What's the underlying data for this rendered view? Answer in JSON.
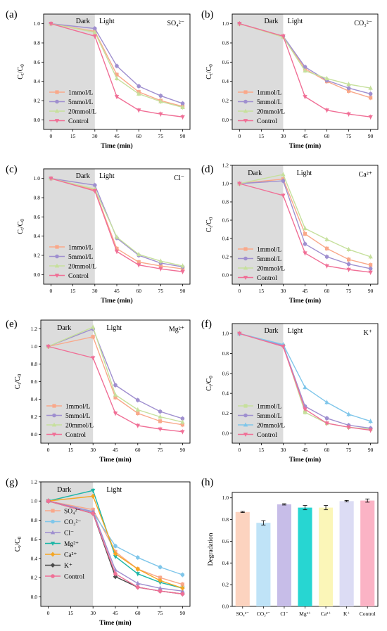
{
  "colors": {
    "c1": "#f9a88a",
    "c5": "#9f8fcf",
    "c20": "#c6e09c",
    "control": "#f06f96",
    "so4": "#f9a88a",
    "co3": "#7fc6ea",
    "cl": "#9f8fcf",
    "mg": "#1db6a7",
    "ca": "#f5a623",
    "k": "#4a4a4a",
    "dark_region": "#dcdcdc"
  },
  "chart_data": [
    {
      "panel": "(a)",
      "type": "line",
      "ion": "SO₄²⁻",
      "xlabel": "Time (min)",
      "ylabel": "Ct/C0",
      "x": [
        0,
        30,
        45,
        60,
        75,
        90
      ],
      "xticks": [
        0,
        15,
        30,
        45,
        60,
        75,
        90
      ],
      "ylim": [
        -0.1,
        1.1
      ],
      "yticks": [
        0.0,
        0.2,
        0.4,
        0.6,
        0.8,
        1.0
      ],
      "region_labels": [
        "Dark",
        "Light"
      ],
      "region_layout": "together",
      "series": [
        {
          "name": "1mmol/L",
          "color": "c1",
          "values": [
            1.0,
            0.92,
            0.47,
            0.29,
            0.2,
            0.14
          ]
        },
        {
          "name": "5mmol/L",
          "color": "c5",
          "values": [
            1.0,
            0.95,
            0.56,
            0.35,
            0.25,
            0.17
          ]
        },
        {
          "name": "20mmol/L",
          "color": "c20",
          "values": [
            1.0,
            0.91,
            0.43,
            0.27,
            0.19,
            0.13
          ]
        },
        {
          "name": "Control",
          "color": "control",
          "values": [
            1.0,
            0.87,
            0.24,
            0.1,
            0.06,
            0.03
          ]
        }
      ]
    },
    {
      "panel": "(b)",
      "type": "line",
      "ion": "CO₃²⁻",
      "xlabel": "Time (min)",
      "ylabel": "Ct/C0",
      "x": [
        0,
        30,
        45,
        60,
        75,
        90
      ],
      "xticks": [
        0,
        15,
        30,
        45,
        60,
        75,
        90
      ],
      "ylim": [
        -0.1,
        1.1
      ],
      "yticks": [
        0.0,
        0.2,
        0.4,
        0.6,
        0.8,
        1.0
      ],
      "region_labels": [
        "Dark",
        "Light"
      ],
      "region_layout": "together",
      "series": [
        {
          "name": "1mmol/L",
          "color": "c1",
          "values": [
            1.0,
            0.87,
            0.53,
            0.4,
            0.3,
            0.23
          ]
        },
        {
          "name": "5mmol/L",
          "color": "c5",
          "values": [
            1.0,
            0.87,
            0.55,
            0.41,
            0.33,
            0.27
          ]
        },
        {
          "name": "20mmol/L",
          "color": "c20",
          "values": [
            1.0,
            0.86,
            0.51,
            0.43,
            0.37,
            0.33
          ]
        },
        {
          "name": "Control",
          "color": "control",
          "values": [
            1.0,
            0.87,
            0.24,
            0.1,
            0.06,
            0.03
          ]
        }
      ]
    },
    {
      "panel": "(c)",
      "type": "line",
      "ion": "Cl⁻",
      "xlabel": "Time (min)",
      "ylabel": "Ct/C0",
      "x": [
        0,
        30,
        45,
        60,
        75,
        90
      ],
      "xticks": [
        0,
        15,
        30,
        45,
        60,
        75,
        90
      ],
      "ylim": [
        -0.1,
        1.1
      ],
      "yticks": [
        0.0,
        0.2,
        0.4,
        0.6,
        0.8,
        1.0
      ],
      "region_labels": [
        "Dark",
        "Light"
      ],
      "region_layout": "together",
      "series": [
        {
          "name": "1mmol/L",
          "color": "c1",
          "values": [
            1.0,
            0.88,
            0.27,
            0.13,
            0.09,
            0.06
          ]
        },
        {
          "name": "5mmol/L",
          "color": "c5",
          "values": [
            1.0,
            0.93,
            0.38,
            0.2,
            0.12,
            0.08
          ]
        },
        {
          "name": "20mmol/L",
          "color": "c20",
          "values": [
            1.0,
            0.89,
            0.39,
            0.21,
            0.14,
            0.09
          ]
        },
        {
          "name": "Control",
          "color": "control",
          "values": [
            1.0,
            0.87,
            0.24,
            0.1,
            0.06,
            0.03
          ]
        }
      ]
    },
    {
      "panel": "(d)",
      "type": "line",
      "ion": "Ca²⁺",
      "xlabel": "Time (min)",
      "ylabel": "Ct/C0",
      "x": [
        0,
        30,
        45,
        60,
        75,
        90
      ],
      "xticks": [
        0,
        15,
        30,
        45,
        60,
        75,
        90
      ],
      "ylim": [
        -0.1,
        1.2
      ],
      "yticks": [
        0.0,
        0.2,
        0.4,
        0.6,
        0.8,
        1.0,
        1.2
      ],
      "region_labels": [
        "Dark",
        "Light"
      ],
      "region_layout": "split",
      "series": [
        {
          "name": "1mmol/L",
          "color": "c1",
          "values": [
            1.0,
            1.05,
            0.45,
            0.29,
            0.17,
            0.11
          ]
        },
        {
          "name": "5mmol/L",
          "color": "c5",
          "values": [
            1.0,
            1.03,
            0.34,
            0.2,
            0.12,
            0.07
          ]
        },
        {
          "name": "20mmol/L",
          "color": "c20",
          "values": [
            1.0,
            1.1,
            0.51,
            0.39,
            0.28,
            0.2
          ]
        },
        {
          "name": "Control",
          "color": "control",
          "values": [
            1.0,
            0.87,
            0.24,
            0.1,
            0.06,
            0.03
          ]
        }
      ]
    },
    {
      "panel": "(e)",
      "type": "line",
      "ion": "Mg²⁺",
      "xlabel": "Time (min)",
      "ylabel": "Ct/C0",
      "x": [
        0,
        30,
        45,
        60,
        75,
        90
      ],
      "xticks": [
        0,
        15,
        30,
        45,
        60,
        75,
        90
      ],
      "ylim": [
        -0.1,
        1.3
      ],
      "yticks": [
        0.0,
        0.2,
        0.4,
        0.6,
        0.8,
        1.0,
        1.2
      ],
      "region_labels": [
        "Dark",
        "Light"
      ],
      "region_layout": "split",
      "series": [
        {
          "name": "1mmol/L",
          "color": "c1",
          "values": [
            1.0,
            1.11,
            0.42,
            0.24,
            0.15,
            0.11
          ]
        },
        {
          "name": "5mmol/L",
          "color": "c5",
          "values": [
            1.0,
            1.2,
            0.56,
            0.39,
            0.26,
            0.18
          ]
        },
        {
          "name": "20mmol/L",
          "color": "c20",
          "values": [
            1.0,
            1.22,
            0.45,
            0.28,
            0.2,
            0.14
          ]
        },
        {
          "name": "Control",
          "color": "control",
          "values": [
            1.0,
            0.87,
            0.24,
            0.1,
            0.06,
            0.03
          ]
        }
      ]
    },
    {
      "panel": "(f)",
      "type": "line",
      "ion": "K⁺",
      "xlabel": "Time (min)",
      "ylabel": "Ct/C0",
      "x": [
        0,
        30,
        45,
        60,
        75,
        90
      ],
      "xticks": [
        0,
        15,
        30,
        45,
        60,
        75,
        90
      ],
      "ylim": [
        -0.1,
        1.1
      ],
      "yticks": [
        0.0,
        0.2,
        0.4,
        0.6,
        0.8,
        1.0
      ],
      "region_labels": [
        "Dark",
        "Light"
      ],
      "region_layout": "together",
      "series": [
        {
          "name": "1mmol/L",
          "color": "c20",
          "values": [
            1.0,
            0.88,
            0.21,
            0.1,
            0.06,
            0.04
          ]
        },
        {
          "name": "5mmol/L",
          "color": "c5",
          "values": [
            1.0,
            0.88,
            0.27,
            0.15,
            0.08,
            0.05
          ]
        },
        {
          "name": "20mmol/L",
          "color": "co3",
          "values": [
            1.0,
            0.89,
            0.46,
            0.31,
            0.19,
            0.12
          ]
        },
        {
          "name": "Control",
          "color": "control",
          "values": [
            1.0,
            0.87,
            0.24,
            0.1,
            0.06,
            0.03
          ]
        }
      ]
    },
    {
      "panel": "(g)",
      "type": "line",
      "ion": "",
      "xlabel": "Time (min)",
      "ylabel": "Ct/C0",
      "x": [
        0,
        30,
        45,
        60,
        75,
        90
      ],
      "xticks": [
        0,
        15,
        30,
        45,
        60,
        75,
        90
      ],
      "ylim": [
        -0.1,
        1.2
      ],
      "yticks": [
        0.0,
        0.2,
        0.4,
        0.6,
        0.8,
        1.0,
        1.2
      ],
      "region_labels": [
        "Dark",
        "Light"
      ],
      "region_layout": "split",
      "series": [
        {
          "name": "SO₄²⁻",
          "color": "so4",
          "values": [
            1.0,
            0.91,
            0.47,
            0.29,
            0.2,
            0.13
          ]
        },
        {
          "name": "CO₃²⁻",
          "color": "co3",
          "values": [
            1.0,
            0.88,
            0.53,
            0.41,
            0.31,
            0.23
          ]
        },
        {
          "name": "Cl⁻",
          "color": "cl",
          "values": [
            1.0,
            0.89,
            0.28,
            0.14,
            0.09,
            0.06
          ]
        },
        {
          "name": "Mg²⁺",
          "color": "mg",
          "values": [
            1.0,
            1.11,
            0.42,
            0.24,
            0.15,
            0.09
          ]
        },
        {
          "name": "Ca²⁺",
          "color": "ca",
          "values": [
            1.0,
            1.05,
            0.45,
            0.29,
            0.17,
            0.09
          ]
        },
        {
          "name": "K⁺",
          "color": "k",
          "values": [
            1.0,
            0.87,
            0.21,
            0.1,
            0.06,
            0.03
          ]
        },
        {
          "name": "Control",
          "color": "control",
          "values": [
            1.0,
            0.87,
            0.24,
            0.1,
            0.06,
            0.03
          ]
        }
      ]
    },
    {
      "panel": "(h)",
      "type": "bar",
      "xlabel": "",
      "ylabel": "Degradation",
      "categories": [
        "SO₄²⁻",
        "CO₃²⁻",
        "Cl⁻",
        "Mg²⁺",
        "Ca²⁺",
        "K⁺",
        "Control"
      ],
      "values": [
        0.87,
        0.77,
        0.94,
        0.91,
        0.91,
        0.97,
        0.975
      ],
      "errors": [
        0.005,
        0.02,
        0.006,
        0.02,
        0.02,
        0.006,
        0.015
      ],
      "bar_colors": [
        "#fcd3bf",
        "#bfe3f7",
        "#c7bde8",
        "#27d6d2",
        "#fbf6b8",
        "#dcdcf4",
        "#fbb3c5"
      ],
      "ylim": [
        0.0,
        1.05
      ],
      "yticks": [
        0.0,
        0.2,
        0.4,
        0.6,
        0.8,
        1.0
      ]
    }
  ]
}
